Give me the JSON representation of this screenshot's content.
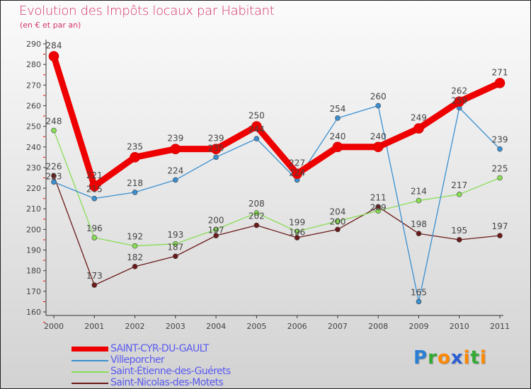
{
  "chart_data": {
    "type": "line",
    "title": "Evolution des Impôts locaux par Habitant",
    "subtitle": "(en € et par an)",
    "xlabel": "",
    "ylabel": "",
    "x": [
      "2000",
      "2001",
      "2002",
      "2003",
      "2004",
      "2005",
      "2006",
      "2007",
      "2008",
      "2009",
      "2010",
      "2011"
    ],
    "ylim": [
      160,
      290
    ],
    "yticks": [
      160,
      170,
      180,
      190,
      200,
      210,
      220,
      230,
      240,
      250,
      260,
      270,
      280,
      290
    ],
    "legend_position": "bottom-left",
    "series": [
      {
        "name": "SAINT-CYR-DU-GAULT",
        "color": "#ee0000",
        "values": [
          284,
          221,
          235,
          239,
          239,
          250,
          227,
          240,
          240,
          249,
          262,
          271
        ]
      },
      {
        "name": "Villeporcher",
        "color": "#3a8fd0",
        "values": [
          223,
          215,
          218,
          224,
          235,
          244,
          224,
          254,
          260,
          165,
          259,
          239
        ]
      },
      {
        "name": "Saint-Étienne-des-Guérets",
        "color": "#88dd55",
        "values": [
          248,
          196,
          192,
          193,
          200,
          208,
          199,
          204,
          209,
          214,
          217,
          225
        ]
      },
      {
        "name": "Saint-Nicolas-des-Motets",
        "color": "#6b1a1a",
        "values": [
          226,
          173,
          182,
          187,
          197,
          202,
          196,
          200,
          211,
          198,
          195,
          197
        ]
      }
    ]
  },
  "logo": {
    "text": "Proxiti",
    "colors": [
      "#2a7fd4",
      "#33aa33",
      "#ff8800",
      "#2a5fd4",
      "#ff8800",
      "#33aa33",
      "#ff8800"
    ]
  }
}
